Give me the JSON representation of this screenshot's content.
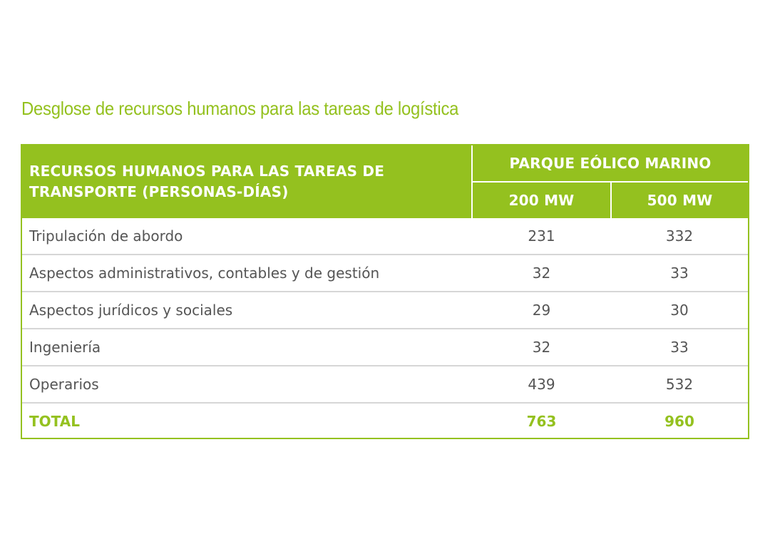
{
  "title": "Desglose de recursos humanos para las tareas de logística",
  "table": {
    "header_main": "RECURSOS HUMANOS PARA LAS TAREAS DE TRANSPORTE (PERSONAS-DÍAS)",
    "header_group": "PARQUE EÓLICO MARINO",
    "columns": [
      "200 MW",
      "500 MW"
    ],
    "rows": [
      {
        "label": "Tripulación de abordo",
        "v200": "231",
        "v500": "332"
      },
      {
        "label": "Aspectos administrativos, contables y de gestión",
        "v200": "32",
        "v500": "33"
      },
      {
        "label": "Aspectos jurídicos y sociales",
        "v200": "29",
        "v500": "30"
      },
      {
        "label": "Ingeniería",
        "v200": "32",
        "v500": "33"
      },
      {
        "label": "Operarios",
        "v200": "439",
        "v500": "532"
      }
    ],
    "total": {
      "label": "TOTAL",
      "v200": "763",
      "v500": "960"
    }
  },
  "colors": {
    "accent": "#94c11f",
    "text": "#555555",
    "divider": "#d6d6d6"
  }
}
